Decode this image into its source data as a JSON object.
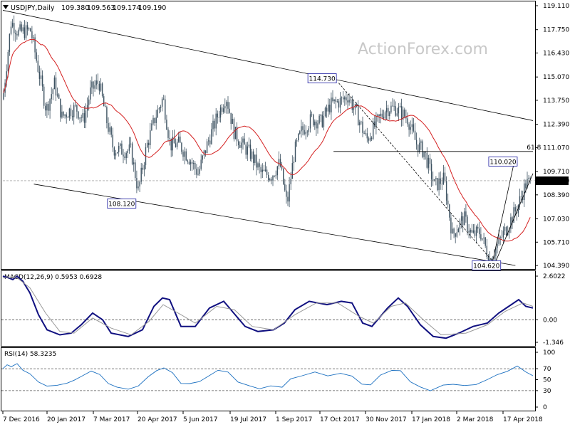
{
  "chart_data": [
    {
      "type": "candlestick",
      "title": "USDJPY,Daily",
      "ohlc": {
        "open": "109.380",
        "high": "109.563",
        "low": "109.174",
        "close": "109.190"
      },
      "last_price": "109.190",
      "watermark": "ActionForex.com",
      "ylim": [
        104.39,
        119.11
      ],
      "y_ticks": [
        "119.110",
        "117.750",
        "116.430",
        "115.070",
        "113.750",
        "112.390",
        "111.070",
        "109.710",
        "108.390",
        "107.030",
        "105.710",
        "104.390"
      ],
      "x_ticks": [
        "7 Dec 2016",
        "20 Jan 2017",
        "7 Mar 2017",
        "20 Apr 2017",
        "5 Jun 2017",
        "19 Jul 2017",
        "1 Sep 2017",
        "17 Oct 2017",
        "30 Nov 2017",
        "17 Jan 2018",
        "2 Mar 2018",
        "17 Apr 2018"
      ],
      "annotations": [
        {
          "label": "114.730",
          "value": 114.73,
          "date": "Oct 2017"
        },
        {
          "label": "108.120",
          "value": 108.12,
          "date": "Apr 2017"
        },
        {
          "label": "104.620",
          "value": 104.62,
          "date": "Mar 2018"
        },
        {
          "label": "110.020",
          "value": 110.02,
          "date": "Apr 2018"
        },
        {
          "label": "61.8",
          "value": 110.85,
          "note": "Fibonacci retracement level"
        }
      ],
      "close_series": [
        {
          "date": "2016-12-07",
          "close": 113.8
        },
        {
          "date": "2016-12-15",
          "close": 118.2
        },
        {
          "date": "2016-12-22",
          "close": 117.6
        },
        {
          "date": "2017-01-03",
          "close": 117.7
        },
        {
          "date": "2017-01-10",
          "close": 115.6
        },
        {
          "date": "2017-01-18",
          "close": 113.2
        },
        {
          "date": "2017-01-26",
          "close": 114.7
        },
        {
          "date": "2017-02-02",
          "close": 112.8
        },
        {
          "date": "2017-02-10",
          "close": 113.2
        },
        {
          "date": "2017-02-16",
          "close": 113.3
        },
        {
          "date": "2017-02-23",
          "close": 112.6
        },
        {
          "date": "2017-03-02",
          "close": 114.3
        },
        {
          "date": "2017-03-10",
          "close": 114.8
        },
        {
          "date": "2017-03-17",
          "close": 112.7
        },
        {
          "date": "2017-03-24",
          "close": 111.0
        },
        {
          "date": "2017-04-03",
          "close": 110.9
        },
        {
          "date": "2017-04-10",
          "close": 110.9
        },
        {
          "date": "2017-04-17",
          "close": 108.6
        },
        {
          "date": "2017-04-25",
          "close": 111.1
        },
        {
          "date": "2017-05-03",
          "close": 112.7
        },
        {
          "date": "2017-05-11",
          "close": 113.9
        },
        {
          "date": "2017-05-18",
          "close": 111.2
        },
        {
          "date": "2017-05-26",
          "close": 111.3
        },
        {
          "date": "2017-06-05",
          "close": 110.5
        },
        {
          "date": "2017-06-14",
          "close": 109.6
        },
        {
          "date": "2017-06-23",
          "close": 111.3
        },
        {
          "date": "2017-07-03",
          "close": 112.9
        },
        {
          "date": "2017-07-11",
          "close": 114.0
        },
        {
          "date": "2017-07-19",
          "close": 111.9
        },
        {
          "date": "2017-07-27",
          "close": 111.2
        },
        {
          "date": "2017-08-04",
          "close": 110.7
        },
        {
          "date": "2017-08-14",
          "close": 109.6
        },
        {
          "date": "2017-08-24",
          "close": 109.5
        },
        {
          "date": "2017-09-01",
          "close": 110.2
        },
        {
          "date": "2017-09-08",
          "close": 107.8
        },
        {
          "date": "2017-09-15",
          "close": 110.8
        },
        {
          "date": "2017-09-22",
          "close": 112.0
        },
        {
          "date": "2017-10-02",
          "close": 112.7
        },
        {
          "date": "2017-10-11",
          "close": 112.5
        },
        {
          "date": "2017-10-20",
          "close": 113.5
        },
        {
          "date": "2017-10-30",
          "close": 113.7
        },
        {
          "date": "2017-11-06",
          "close": 114.0
        },
        {
          "date": "2017-11-15",
          "close": 112.9
        },
        {
          "date": "2017-11-24",
          "close": 111.5
        },
        {
          "date": "2017-12-05",
          "close": 112.6
        },
        {
          "date": "2017-12-13",
          "close": 113.3
        },
        {
          "date": "2017-12-22",
          "close": 113.3
        },
        {
          "date": "2018-01-03",
          "close": 112.7
        },
        {
          "date": "2018-01-11",
          "close": 111.3
        },
        {
          "date": "2018-01-19",
          "close": 110.8
        },
        {
          "date": "2018-01-29",
          "close": 108.9
        },
        {
          "date": "2018-02-07",
          "close": 109.3
        },
        {
          "date": "2018-02-15",
          "close": 106.1
        },
        {
          "date": "2018-02-26",
          "close": 107.1
        },
        {
          "date": "2018-03-06",
          "close": 106.1
        },
        {
          "date": "2018-03-14",
          "close": 106.3
        },
        {
          "date": "2018-03-23",
          "close": 104.7
        },
        {
          "date": "2018-04-02",
          "close": 105.8
        },
        {
          "date": "2018-04-11",
          "close": 106.8
        },
        {
          "date": "2018-04-19",
          "close": 107.7
        },
        {
          "date": "2018-04-27",
          "close": 109.0
        },
        {
          "date": "2018-05-04",
          "close": 109.2
        }
      ],
      "ma_line": "moving average (red)",
      "trend_lines": [
        "falling channel upper",
        "falling channel lower",
        "rising support from 104.620",
        "retracement from 114.730 to 104.620",
        "horizontal 61.8 level"
      ],
      "colors": {
        "candles": "#3d5261",
        "ma": "#d42020",
        "trend": "#000000",
        "label_border": "#1a1aa0"
      }
    },
    {
      "type": "line",
      "title": "MACD(12,26,9) 0.5953 0.6928",
      "ylim": [
        -1.346,
        2.6022
      ],
      "y_ticks": [
        "2.6022",
        "0.00",
        "-1.346"
      ],
      "series": [
        {
          "name": "MACD",
          "color": "#101080",
          "values": [
            [
              0,
              2.6
            ],
            [
              8,
              2.5
            ],
            [
              14,
              2.4
            ],
            [
              20,
              2.6
            ],
            [
              28,
              2.3
            ],
            [
              38,
              1.6
            ],
            [
              50,
              0.3
            ],
            [
              62,
              -0.6
            ],
            [
              80,
              -0.9
            ],
            [
              96,
              -0.8
            ],
            [
              110,
              -0.3
            ],
            [
              126,
              0.4
            ],
            [
              140,
              0.0
            ],
            [
              152,
              -0.8
            ],
            [
              176,
              -1.0
            ],
            [
              196,
              -0.6
            ],
            [
              212,
              0.8
            ],
            [
              224,
              1.3
            ],
            [
              234,
              1.2
            ],
            [
              250,
              -0.4
            ],
            [
              270,
              -0.4
            ],
            [
              290,
              0.7
            ],
            [
              310,
              1.1
            ],
            [
              324,
              0.4
            ],
            [
              340,
              -0.4
            ],
            [
              358,
              -0.7
            ],
            [
              380,
              -0.6
            ],
            [
              395,
              -0.2
            ],
            [
              410,
              0.6
            ],
            [
              430,
              1.1
            ],
            [
              455,
              0.9
            ],
            [
              475,
              1.1
            ],
            [
              490,
              1.0
            ],
            [
              505,
              -0.2
            ],
            [
              518,
              -0.4
            ],
            [
              540,
              0.7
            ],
            [
              555,
              1.3
            ],
            [
              568,
              0.8
            ],
            [
              586,
              -0.3
            ],
            [
              604,
              -1.0
            ],
            [
              622,
              -1.1
            ],
            [
              640,
              -0.8
            ],
            [
              660,
              -0.4
            ],
            [
              680,
              -0.2
            ],
            [
              696,
              0.4
            ],
            [
              710,
              0.8
            ],
            [
              724,
              1.2
            ],
            [
              734,
              0.8
            ],
            [
              744,
              0.7
            ]
          ]
        },
        {
          "name": "Signal",
          "color": "#999999",
          "values": [
            [
              0,
              2.5
            ],
            [
              20,
              2.5
            ],
            [
              38,
              1.9
            ],
            [
              60,
              0.4
            ],
            [
              80,
              -0.7
            ],
            [
              100,
              -0.8
            ],
            [
              126,
              0.1
            ],
            [
              152,
              -0.5
            ],
            [
              180,
              -0.9
            ],
            [
              205,
              -0.1
            ],
            [
              225,
              0.9
            ],
            [
              250,
              0.3
            ],
            [
              270,
              -0.2
            ],
            [
              300,
              0.8
            ],
            [
              325,
              0.6
            ],
            [
              350,
              -0.4
            ],
            [
              380,
              -0.6
            ],
            [
              410,
              0.3
            ],
            [
              440,
              1.0
            ],
            [
              470,
              1.0
            ],
            [
              500,
              0.2
            ],
            [
              520,
              -0.2
            ],
            [
              545,
              0.8
            ],
            [
              565,
              1.0
            ],
            [
              590,
              0.0
            ],
            [
              615,
              -0.9
            ],
            [
              650,
              -0.8
            ],
            [
              680,
              -0.3
            ],
            [
              705,
              0.5
            ],
            [
              730,
              1.0
            ],
            [
              744,
              0.8
            ]
          ]
        }
      ],
      "zero_line": true
    },
    {
      "type": "line",
      "title": "RSI(14) 58.3235",
      "ylim": [
        0,
        100
      ],
      "y_ticks": [
        "100",
        "70",
        "50",
        "30",
        "0"
      ],
      "series": [
        {
          "name": "RSI",
          "color": "#1a6fc0",
          "values": [
            [
              0,
              70
            ],
            [
              6,
              80
            ],
            [
              12,
              72
            ],
            [
              20,
              78
            ],
            [
              28,
              70
            ],
            [
              38,
              60
            ],
            [
              50,
              48
            ],
            [
              62,
              40
            ],
            [
              76,
              42
            ],
            [
              90,
              45
            ],
            [
              100,
              46
            ],
            [
              110,
              55
            ],
            [
              124,
              65
            ],
            [
              136,
              58
            ],
            [
              148,
              42
            ],
            [
              160,
              36
            ],
            [
              176,
              30
            ],
            [
              190,
              38
            ],
            [
              204,
              55
            ],
            [
              216,
              64
            ],
            [
              226,
              70
            ],
            [
              238,
              60
            ],
            [
              250,
              45
            ],
            [
              262,
              42
            ],
            [
              276,
              48
            ],
            [
              290,
              60
            ],
            [
              302,
              66
            ],
            [
              316,
              62
            ],
            [
              330,
              48
            ],
            [
              346,
              40
            ],
            [
              360,
              36
            ],
            [
              376,
              38
            ],
            [
              392,
              34
            ],
            [
              404,
              52
            ],
            [
              420,
              60
            ],
            [
              438,
              62
            ],
            [
              456,
              58
            ],
            [
              474,
              60
            ],
            [
              490,
              56
            ],
            [
              504,
              44
            ],
            [
              516,
              42
            ],
            [
              530,
              58
            ],
            [
              546,
              68
            ],
            [
              558,
              64
            ],
            [
              572,
              48
            ],
            [
              586,
              38
            ],
            [
              600,
              32
            ],
            [
              618,
              38
            ],
            [
              632,
              42
            ],
            [
              648,
              40
            ],
            [
              664,
              44
            ],
            [
              680,
              52
            ],
            [
              694,
              62
            ],
            [
              708,
              68
            ],
            [
              722,
              72
            ],
            [
              734,
              64
            ],
            [
              744,
              58
            ]
          ]
        }
      ],
      "levels": [
        70,
        30
      ]
    }
  ]
}
